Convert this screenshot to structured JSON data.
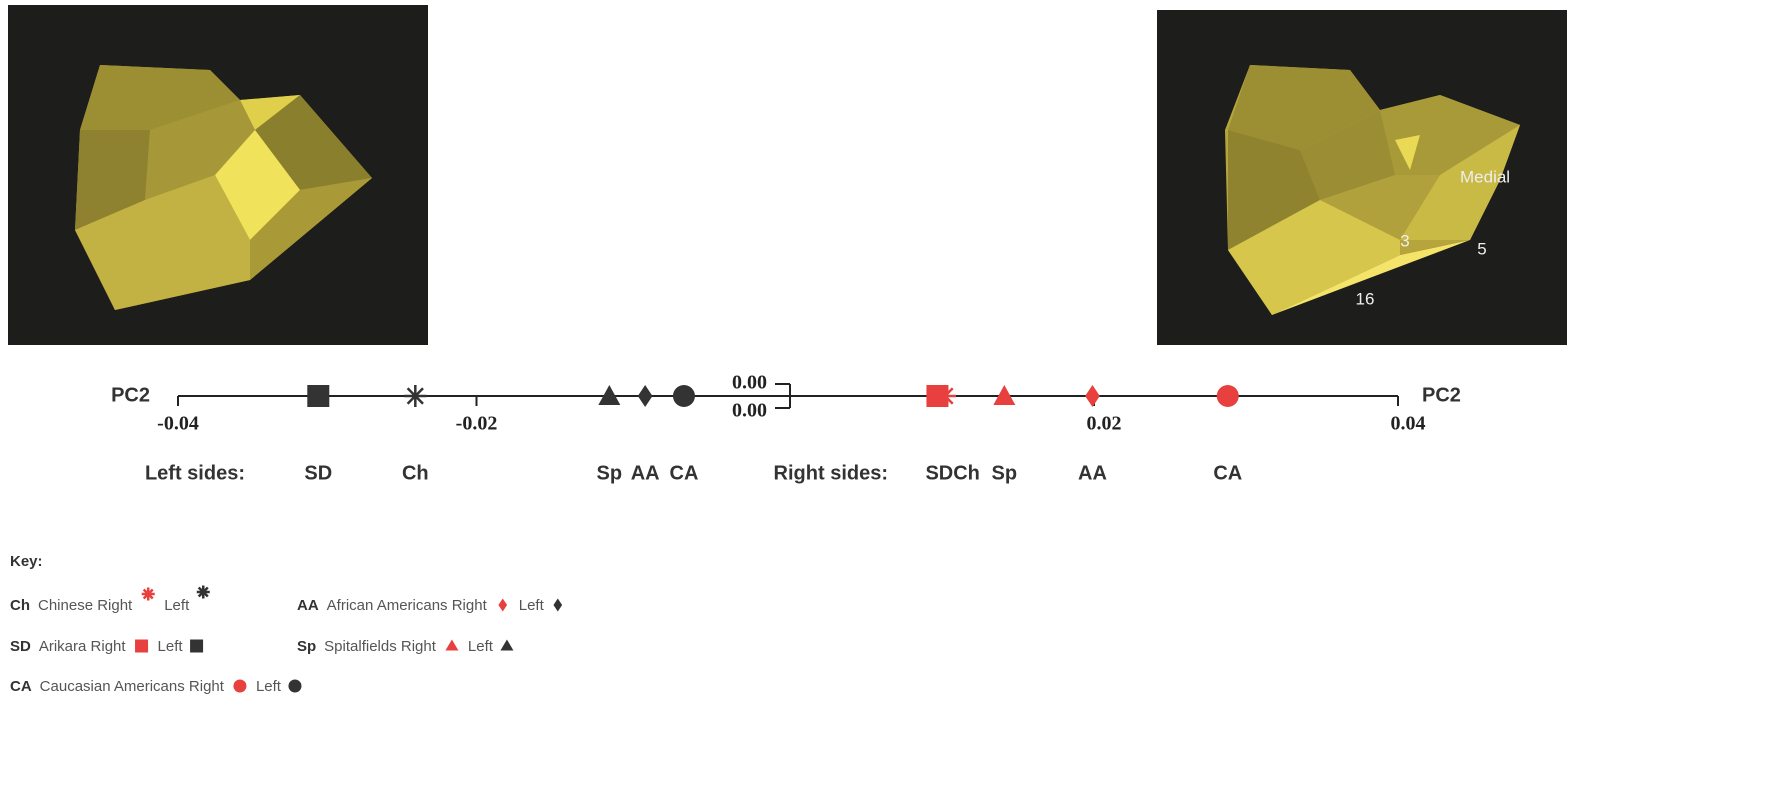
{
  "chart_data": {
    "type": "scatter",
    "series": [
      {
        "name": "Left sides:",
        "xlabel": "PC2",
        "color": "#333333",
        "xlim": [
          -0.04,
          0
        ],
        "xticks": [
          -0.04,
          -0.02,
          {
            "value": 0,
            "label": "0.00"
          }
        ],
        "categories": [
          "SD",
          "Ch",
          "Sp",
          "AA",
          "CA"
        ],
        "values": [
          -0.0306,
          -0.0241,
          -0.0111,
          -0.0087,
          -0.0061
        ]
      },
      {
        "name": "Right sides:",
        "xlabel": "PC2",
        "color": "#e8403f",
        "xlim": [
          0,
          0.04
        ],
        "xticks": [
          {
            "value": 0,
            "label": "0.00"
          },
          0.02,
          0.04
        ],
        "categories": [
          "SD",
          "Ch",
          "Sp",
          "AA",
          "CA"
        ],
        "values": [
          0.0097,
          0.0102,
          0.0141,
          0.0199,
          0.0288
        ]
      }
    ],
    "markers": [
      "square",
      "asterisk",
      "triangle",
      "diamond",
      "circle"
    ],
    "image_labels": [
      "Medial",
      "3",
      "5",
      "16"
    ],
    "key": {
      "title": "Key:",
      "entries": [
        {
          "abbr": "Ch",
          "label": "Chinese Right",
          "left": "Left"
        },
        {
          "abbr": "AA",
          "label": "African Americans Right",
          "left": "Left"
        },
        {
          "abbr": "SD",
          "label": "Arikara Right",
          "left": "Left"
        },
        {
          "abbr": "Sp",
          "label": "Spitalfields Right",
          "left": "Left"
        },
        {
          "abbr": "CA",
          "label": "Caucasian Americans Right",
          "left": "Left"
        }
      ]
    }
  }
}
